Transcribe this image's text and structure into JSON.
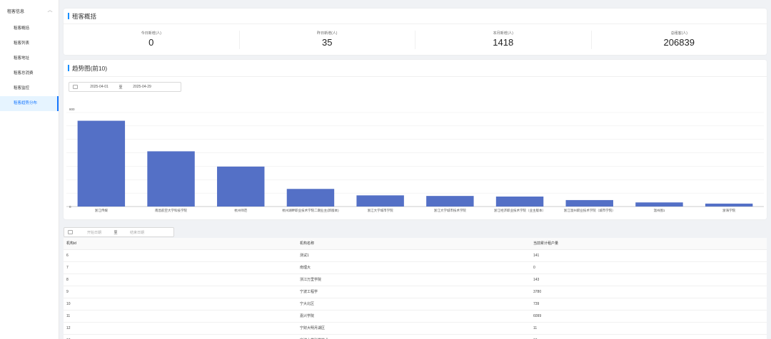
{
  "sidebar": {
    "group_label": "租客信息",
    "items": [
      {
        "label": "租客概括",
        "active": false
      },
      {
        "label": "租客列表",
        "active": false
      },
      {
        "label": "租客地址",
        "active": false
      },
      {
        "label": "租客总消费",
        "active": false
      },
      {
        "label": "租客监控",
        "active": false
      },
      {
        "label": "租客趋势分布",
        "active": true
      }
    ]
  },
  "overview": {
    "title": "租客概括",
    "stats": [
      {
        "label": "今日新增(人)",
        "value": "0"
      },
      {
        "label": "昨日新增(人)",
        "value": "35"
      },
      {
        "label": "本月新增(人)",
        "value": "1418"
      },
      {
        "label": "总租客(人)",
        "value": "206839"
      }
    ]
  },
  "trend": {
    "title": "趋势图(前10)",
    "start_date": "2025-04-01",
    "end_date": "2025-04-29",
    "separator": "至"
  },
  "chart_data": {
    "type": "bar",
    "title": "",
    "xlabel": "",
    "ylabel": "",
    "ylim": [
      0,
      800
    ],
    "ytick_labels": [
      "800",
      "0"
    ],
    "grid": true,
    "bar_color": "#5470c6",
    "categories": [
      "浙江传媒",
      "南昌航空大学科技学院",
      "杭州师范",
      "杭州湖畔职业技术学院二期业主(新版本)",
      "浙江大学城市学院",
      "浙江大学城市技术学院",
      "浙江经济职业技术学院（业主版本）",
      "浙江温州职业技术学院（城市学院）",
      "温州图1",
      "浙海学院"
    ],
    "values": [
      730,
      470,
      340,
      150,
      95,
      90,
      85,
      55,
      35,
      25
    ]
  },
  "filter": {
    "start_placeholder": "开始日期",
    "end_placeholder": "结束日期",
    "separator": "至"
  },
  "table": {
    "columns": [
      "机构id",
      "机构名称",
      "当前累计租户量"
    ],
    "rows": [
      [
        "6",
        "测试1",
        "141"
      ],
      [
        "7",
        "南理大",
        "0"
      ],
      [
        "8",
        "浙江万里学院",
        "143"
      ],
      [
        "9",
        "宁波工程学",
        "3780"
      ],
      [
        "10",
        "宁大北区",
        "739"
      ],
      [
        "11",
        "嘉兴学院",
        "6099"
      ],
      [
        "12",
        "宁财大明月湖区",
        "11"
      ],
      [
        "13",
        "宁波大学科学技术",
        "10"
      ]
    ]
  }
}
